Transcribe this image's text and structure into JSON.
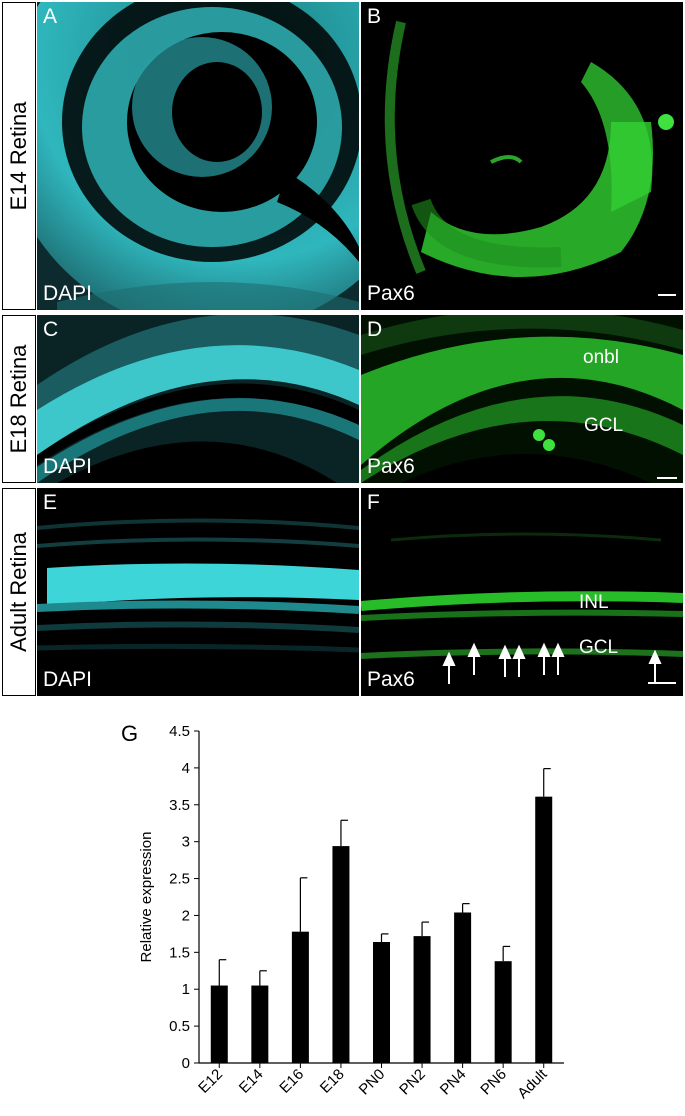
{
  "row_labels": [
    "E14 Retina",
    "E18 Retina",
    "Adult Retina"
  ],
  "panels": {
    "A": {
      "letter": "A",
      "stain": "DAPI"
    },
    "B": {
      "letter": "B",
      "stain": "Pax6"
    },
    "C": {
      "letter": "C",
      "stain": "DAPI"
    },
    "D": {
      "letter": "D",
      "stain": "Pax6",
      "annotations": [
        "onbl",
        "GCL"
      ]
    },
    "E": {
      "letter": "E",
      "stain": "DAPI"
    },
    "F": {
      "letter": "F",
      "stain": "Pax6",
      "annotations": [
        "INL",
        "GCL"
      ]
    }
  },
  "colors": {
    "dapi": "#3fd3d3",
    "pax6": "#2fd42f",
    "background": "#000000",
    "bar": "#000000"
  },
  "chart_label": "G",
  "chart_data": {
    "type": "bar",
    "title": "",
    "xlabel": "",
    "ylabel": "Relative expression",
    "categories": [
      "E12",
      "E14",
      "E16",
      "E18",
      "PN0",
      "PN2",
      "PN4",
      "PN6",
      "Adult"
    ],
    "values": [
      1.05,
      1.05,
      1.78,
      2.94,
      1.64,
      1.72,
      2.04,
      1.38,
      3.61
    ],
    "errors": [
      0.35,
      0.2,
      0.73,
      0.35,
      0.11,
      0.19,
      0.12,
      0.2,
      0.38
    ],
    "ylim": [
      0,
      4.5
    ],
    "yticks": [
      "0",
      "0.5",
      "1",
      "1.5",
      "2",
      "2.5",
      "3",
      "3.5",
      "4",
      "4.5"
    ],
    "grid": false,
    "legend": "none"
  }
}
